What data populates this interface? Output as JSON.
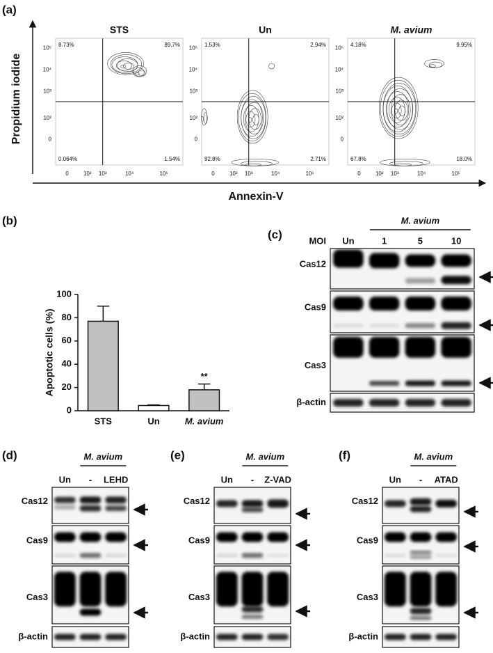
{
  "panels": {
    "a": {
      "label": "(a)",
      "y_axis_label": "Propidium iodide",
      "x_axis_label": "Annexin-V",
      "x_ticks": [
        "0",
        "10²",
        "10³",
        "10⁴",
        "10⁵"
      ],
      "y_ticks": [
        "10⁵",
        "10⁴",
        "10³",
        "10²",
        "0"
      ],
      "plots": [
        {
          "title": "STS",
          "upper_left": "8.73%",
          "upper_right": "89.7%",
          "lower_left": "0.064%",
          "lower_right": "1.54%"
        },
        {
          "title": "Un",
          "upper_left": "1.53%",
          "upper_right": "2.94%",
          "lower_left": "92.8%",
          "lower_right": "2.71%"
        },
        {
          "title": "M. avium",
          "upper_left": "4.18%",
          "upper_right": "9.95%",
          "lower_left": "67.8%",
          "lower_right": "18.0%"
        }
      ]
    },
    "b": {
      "label": "(b)"
    },
    "c": {
      "label": "(c)",
      "group": "M. avium",
      "lane_header": "MOI",
      "lanes": [
        "Un",
        "1",
        "5",
        "10"
      ],
      "rows": [
        "Cas12",
        "Cas9",
        "Cas3",
        "β-actin"
      ]
    },
    "d": {
      "label": "(d)",
      "group": "M. avium",
      "lanes": [
        "Un",
        "-",
        "LEHD"
      ],
      "rows": [
        "Cas12",
        "Cas9",
        "Cas3",
        "β-actin"
      ]
    },
    "e": {
      "label": "(e)",
      "group": "M. avium",
      "lanes": [
        "Un",
        "-",
        "Z-VAD"
      ],
      "rows": [
        "Cas12",
        "Cas9",
        "Cas3",
        "β-actin"
      ]
    },
    "f": {
      "label": "(f)",
      "group": "M. avium",
      "lanes": [
        "Un",
        "-",
        "ATAD"
      ],
      "rows": [
        "Cas12",
        "Cas9",
        "Cas3",
        "β-actin"
      ]
    }
  },
  "chart_data": {
    "type": "bar",
    "y_label": "Apoptotic cells (%)",
    "categories": [
      "STS",
      "Un",
      "M. avium"
    ],
    "values": [
      77,
      4.5,
      18
    ],
    "errors": [
      13,
      0.5,
      5
    ],
    "significance_labels": [
      null,
      null,
      "**"
    ],
    "colors": [
      "#c0c0c0",
      "#ffffff",
      "#c0c0c0"
    ],
    "ylim": [
      0,
      100
    ],
    "yticks": [
      0,
      20,
      40,
      60,
      80,
      100
    ]
  }
}
